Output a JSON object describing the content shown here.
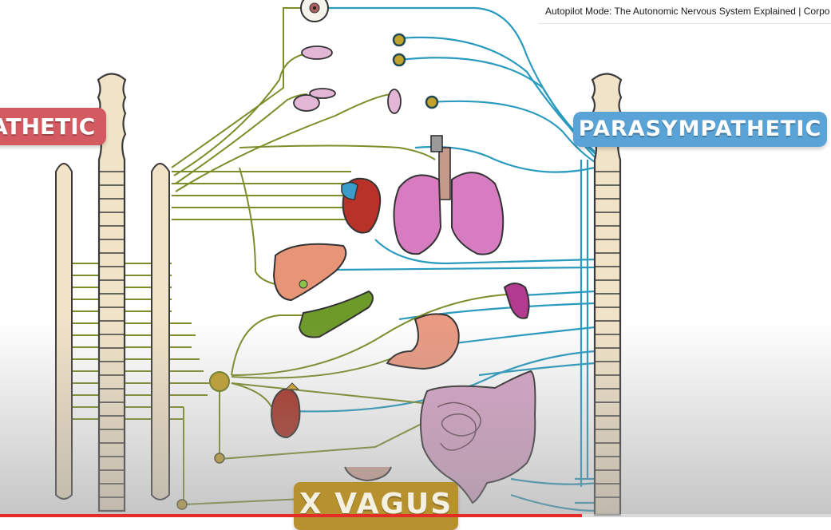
{
  "video": {
    "title": "Autopilot Mode: The Autonomic Nervous System Explained | Corpo",
    "progress_fraction": 0.7
  },
  "labels": {
    "sympathetic": "ATHETIC",
    "parasympathetic": "PARASYMPATHETIC",
    "vagus": "X VAGUS"
  },
  "colors": {
    "sympathetic_banner": "#d35a60",
    "parasympathetic_banner": "#5aa3d6",
    "vagus_banner": "#b8912f",
    "sympathetic_nerve": "#7a8f2a",
    "parasympathetic_nerve": "#2a9bbf",
    "spine": "#f1e3c8",
    "progress": "#e52d27"
  },
  "organs": [
    {
      "name": "eye-icon"
    },
    {
      "name": "salivary-gland-icon"
    },
    {
      "name": "heart-icon"
    },
    {
      "name": "lungs-icon"
    },
    {
      "name": "liver-icon"
    },
    {
      "name": "pancreas-icon"
    },
    {
      "name": "spleen-icon"
    },
    {
      "name": "stomach-icon"
    },
    {
      "name": "kidney-icon"
    },
    {
      "name": "intestines-icon"
    },
    {
      "name": "bladder-icon"
    }
  ]
}
